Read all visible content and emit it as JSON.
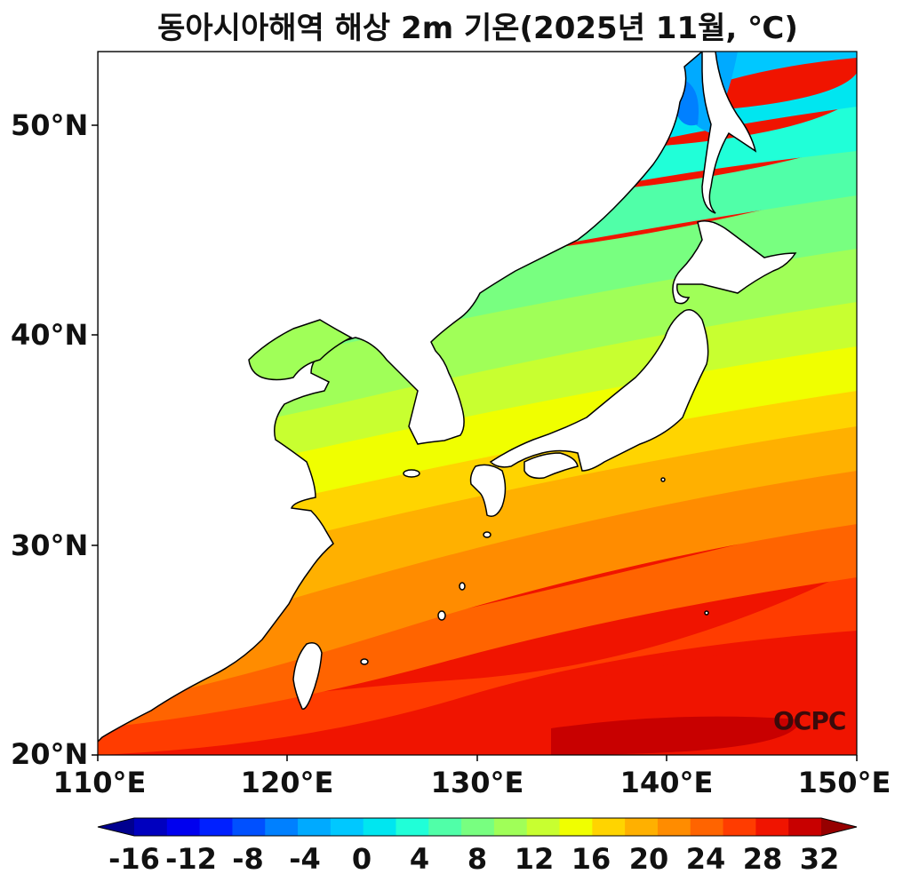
{
  "title": "동아시아해역 해상 2m 기온(2025년 11월, ℃)",
  "watermark": "OCPC",
  "map": {
    "lat_ticks": [
      "50°N",
      "40°N",
      "30°N",
      "20°N"
    ],
    "lon_ticks": [
      "110°E",
      "120°E",
      "130°E",
      "140°E",
      "150°E"
    ],
    "lat_range": [
      20,
      53.5
    ],
    "lon_range": [
      110,
      150
    ],
    "land_color": "#ffffff",
    "coast_color": "#000000"
  },
  "colorbar": {
    "tick_labels": [
      "-16",
      "-12",
      "-8",
      "-4",
      "0",
      "4",
      "8",
      "12",
      "16",
      "20",
      "24",
      "28",
      "32"
    ],
    "range": [
      -16,
      32
    ],
    "step": 2,
    "extend": "both",
    "colors": [
      "#00008f",
      "#0000bf",
      "#0000ef",
      "#0020ff",
      "#0050ff",
      "#0080ff",
      "#00aaff",
      "#00c8ff",
      "#00e6f0",
      "#20ffd8",
      "#50ffa8",
      "#78ff80",
      "#a0ff58",
      "#c8ff30",
      "#f0ff00",
      "#ffd400",
      "#ffb000",
      "#ff8c00",
      "#ff6400",
      "#ff3c00",
      "#f01400",
      "#c80000",
      "#960000"
    ]
  }
}
